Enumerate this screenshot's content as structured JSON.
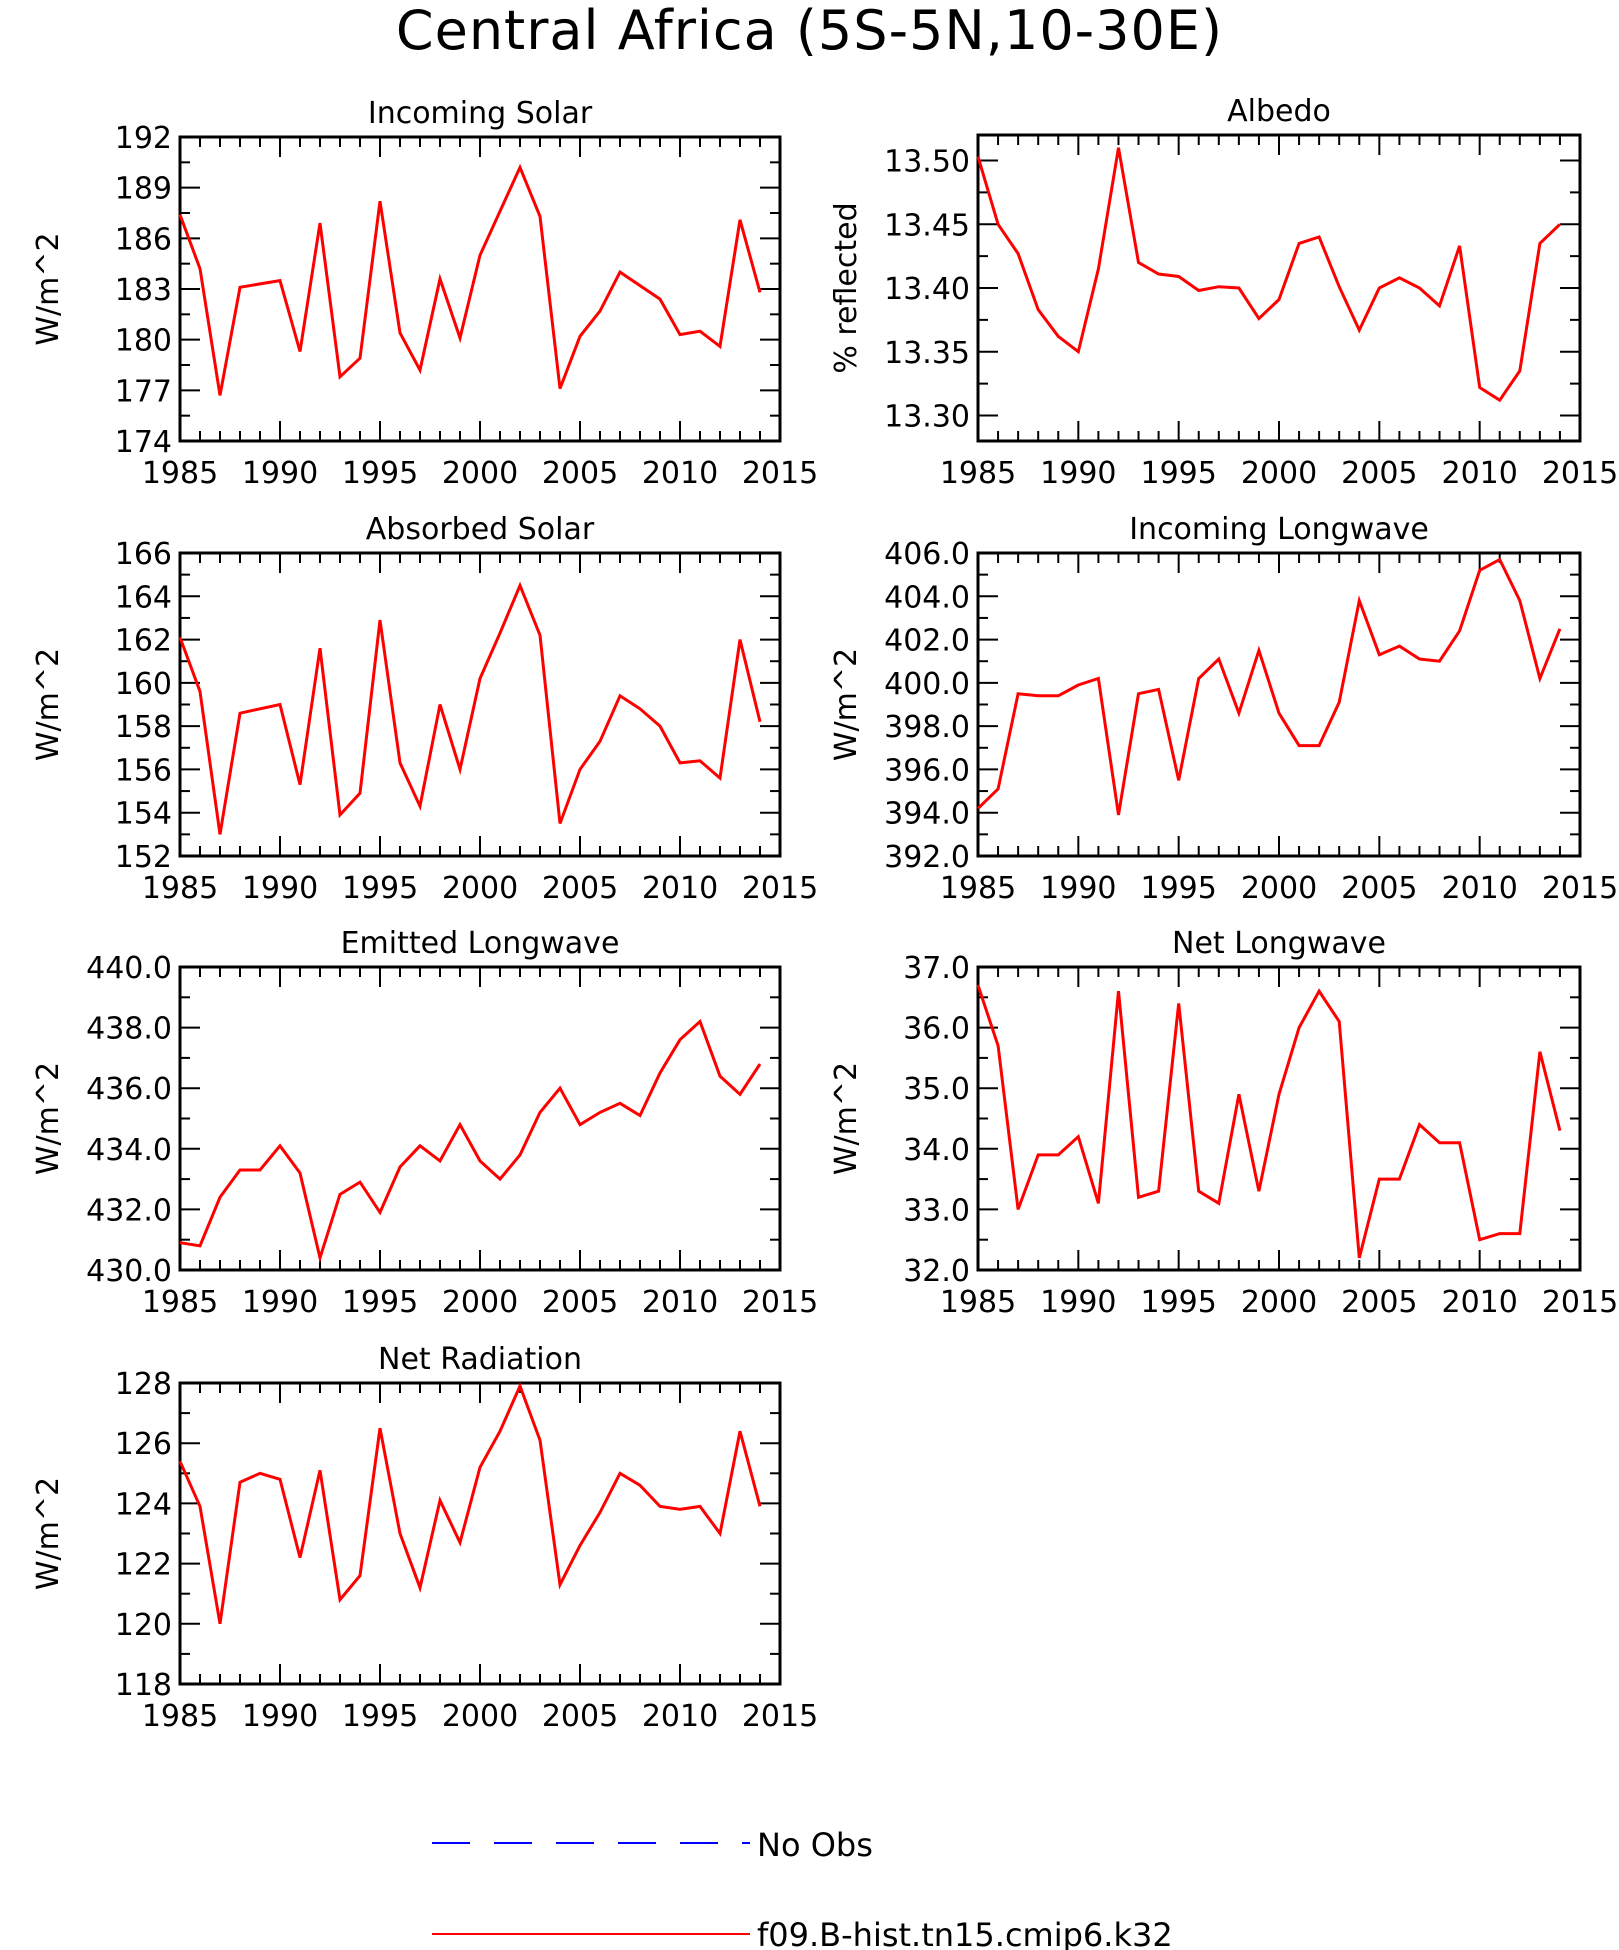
{
  "title": "Central Africa (5S-5N,10-30E)",
  "colors": {
    "model": "#ff0000",
    "obs": "#0000ff",
    "axis": "#000000"
  },
  "legend": [
    {
      "label": "No Obs",
      "style": "dashed",
      "color": "#0000ff"
    },
    {
      "label": "f09.B-hist.tn15.cmip6.k32",
      "style": "solid",
      "color": "#ff0000"
    }
  ],
  "chart_data": [
    {
      "type": "line",
      "title": "Incoming Solar",
      "xlabel": "",
      "ylabel": "W/m^2",
      "xlim": [
        1985,
        2015
      ],
      "ylim": [
        174,
        192
      ],
      "xticks": [
        "1985",
        "1990",
        "1995",
        "2000",
        "2005",
        "2010",
        "2015"
      ],
      "yticks": [
        "174",
        "177",
        "180",
        "183",
        "186",
        "189",
        "192"
      ],
      "x": [
        1985,
        1986,
        1987,
        1988,
        1989,
        1990,
        1991,
        1992,
        1993,
        1994,
        1995,
        1996,
        1997,
        1998,
        1999,
        2000,
        2001,
        2002,
        2003,
        2004,
        2005,
        2006,
        2007,
        2008,
        2009,
        2010,
        2011,
        2012,
        2013,
        2014
      ],
      "series": [
        {
          "name": "f09.B-hist.tn15.cmip6.k32",
          "values": [
            187.4,
            184.2,
            176.7,
            183.1,
            183.3,
            183.5,
            179.3,
            186.9,
            177.8,
            178.9,
            188.2,
            180.4,
            178.2,
            183.6,
            180.1,
            185.0,
            187.6,
            190.2,
            187.3,
            177.1,
            180.2,
            181.7,
            184.0,
            183.2,
            182.4,
            180.3,
            180.5,
            179.6,
            187.1,
            182.8
          ]
        }
      ]
    },
    {
      "type": "line",
      "title": "Albedo",
      "xlabel": "",
      "ylabel": "% reflected",
      "xlim": [
        1985,
        2015
      ],
      "ylim": [
        13.28,
        13.52
      ],
      "xticks": [
        "1985",
        "1990",
        "1995",
        "2000",
        "2005",
        "2010",
        "2015"
      ],
      "yticks": [
        "13.30",
        "13.35",
        "13.40",
        "13.45",
        "13.50"
      ],
      "x": [
        1985,
        1986,
        1987,
        1988,
        1989,
        1990,
        1991,
        1992,
        1993,
        1994,
        1995,
        1996,
        1997,
        1998,
        1999,
        2000,
        2001,
        2002,
        2003,
        2004,
        2005,
        2006,
        2007,
        2008,
        2009,
        2010,
        2011,
        2012,
        2013,
        2014
      ],
      "series": [
        {
          "name": "f09.B-hist.tn15.cmip6.k32",
          "values": [
            13.503,
            13.45,
            13.427,
            13.383,
            13.362,
            13.35,
            13.415,
            13.51,
            13.42,
            13.411,
            13.409,
            13.398,
            13.401,
            13.4,
            13.376,
            13.391,
            13.435,
            13.44,
            13.401,
            13.367,
            13.4,
            13.408,
            13.4,
            13.386,
            13.433,
            13.322,
            13.312,
            13.335,
            13.435,
            13.45
          ]
        }
      ]
    },
    {
      "type": "line",
      "title": "Absorbed Solar",
      "xlabel": "",
      "ylabel": "W/m^2",
      "xlim": [
        1985,
        2015
      ],
      "ylim": [
        152,
        166
      ],
      "xticks": [
        "1985",
        "1990",
        "1995",
        "2000",
        "2005",
        "2010",
        "2015"
      ],
      "yticks": [
        "152",
        "154",
        "156",
        "158",
        "160",
        "162",
        "164",
        "166"
      ],
      "x": [
        1985,
        1986,
        1987,
        1988,
        1989,
        1990,
        1991,
        1992,
        1993,
        1994,
        1995,
        1996,
        1997,
        1998,
        1999,
        2000,
        2001,
        2002,
        2003,
        2004,
        2005,
        2006,
        2007,
        2008,
        2009,
        2010,
        2011,
        2012,
        2013,
        2014
      ],
      "series": [
        {
          "name": "f09.B-hist.tn15.cmip6.k32",
          "values": [
            162.1,
            159.6,
            153.0,
            158.6,
            158.8,
            159.0,
            155.3,
            161.6,
            153.9,
            154.9,
            162.9,
            156.3,
            154.3,
            159.0,
            156.0,
            160.2,
            162.3,
            164.5,
            162.2,
            153.5,
            156.0,
            157.3,
            159.4,
            158.8,
            158.0,
            156.3,
            156.4,
            155.6,
            162.0,
            158.2
          ]
        }
      ]
    },
    {
      "type": "line",
      "title": "Incoming Longwave",
      "xlabel": "",
      "ylabel": "W/m^2",
      "xlim": [
        1985,
        2015
      ],
      "ylim": [
        392,
        406
      ],
      "xticks": [
        "1985",
        "1990",
        "1995",
        "2000",
        "2005",
        "2010",
        "2015"
      ],
      "yticks": [
        "392.0",
        "394.0",
        "396.0",
        "398.0",
        "400.0",
        "402.0",
        "404.0",
        "406.0"
      ],
      "x": [
        1985,
        1986,
        1987,
        1988,
        1989,
        1990,
        1991,
        1992,
        1993,
        1994,
        1995,
        1996,
        1997,
        1998,
        1999,
        2000,
        2001,
        2002,
        2003,
        2004,
        2005,
        2006,
        2007,
        2008,
        2009,
        2010,
        2011,
        2012,
        2013,
        2014
      ],
      "series": [
        {
          "name": "f09.B-hist.tn15.cmip6.k32",
          "values": [
            394.2,
            395.1,
            399.5,
            399.4,
            399.4,
            399.9,
            400.2,
            393.9,
            399.5,
            399.7,
            395.5,
            400.2,
            401.1,
            398.6,
            401.5,
            398.6,
            397.1,
            397.1,
            399.1,
            403.8,
            401.3,
            401.7,
            401.1,
            401.0,
            402.4,
            405.2,
            405.7,
            403.8,
            400.2,
            402.5
          ]
        }
      ]
    },
    {
      "type": "line",
      "title": "Emitted Longwave",
      "xlabel": "",
      "ylabel": "W/m^2",
      "xlim": [
        1985,
        2015
      ],
      "ylim": [
        430,
        440
      ],
      "xticks": [
        "1985",
        "1990",
        "1995",
        "2000",
        "2005",
        "2010",
        "2015"
      ],
      "yticks": [
        "430.0",
        "432.0",
        "434.0",
        "436.0",
        "438.0",
        "440.0"
      ],
      "x": [
        1985,
        1986,
        1987,
        1988,
        1989,
        1990,
        1991,
        1992,
        1993,
        1994,
        1995,
        1996,
        1997,
        1998,
        1999,
        2000,
        2001,
        2002,
        2003,
        2004,
        2005,
        2006,
        2007,
        2008,
        2009,
        2010,
        2011,
        2012,
        2013,
        2014
      ],
      "series": [
        {
          "name": "f09.B-hist.tn15.cmip6.k32",
          "values": [
            430.9,
            430.8,
            432.4,
            433.3,
            433.3,
            434.1,
            433.2,
            430.4,
            432.5,
            432.9,
            431.9,
            433.4,
            434.1,
            433.6,
            434.8,
            433.6,
            433.0,
            433.8,
            435.2,
            436.0,
            434.8,
            435.2,
            435.5,
            435.1,
            436.5,
            437.6,
            438.2,
            436.4,
            435.8,
            436.8
          ]
        }
      ]
    },
    {
      "type": "line",
      "title": "Net Longwave",
      "xlabel": "",
      "ylabel": "W/m^2",
      "xlim": [
        1985,
        2015
      ],
      "ylim": [
        32,
        37
      ],
      "xticks": [
        "1985",
        "1990",
        "1995",
        "2000",
        "2005",
        "2010",
        "2015"
      ],
      "yticks": [
        "32.0",
        "33.0",
        "34.0",
        "35.0",
        "36.0",
        "37.0"
      ],
      "x": [
        1985,
        1986,
        1987,
        1988,
        1989,
        1990,
        1991,
        1992,
        1993,
        1994,
        1995,
        1996,
        1997,
        1998,
        1999,
        2000,
        2001,
        2002,
        2003,
        2004,
        2005,
        2006,
        2007,
        2008,
        2009,
        2010,
        2011,
        2012,
        2013,
        2014
      ],
      "series": [
        {
          "name": "f09.B-hist.tn15.cmip6.k32",
          "values": [
            36.7,
            35.7,
            33.0,
            33.9,
            33.9,
            34.2,
            33.1,
            36.6,
            33.2,
            33.3,
            36.4,
            33.3,
            33.1,
            34.9,
            33.3,
            34.9,
            36.0,
            36.6,
            36.1,
            32.2,
            33.5,
            33.5,
            34.4,
            34.1,
            34.1,
            32.5,
            32.6,
            32.6,
            35.6,
            34.3
          ]
        }
      ]
    },
    {
      "type": "line",
      "title": "Net Radiation",
      "xlabel": "",
      "ylabel": "W/m^2",
      "xlim": [
        1985,
        2015
      ],
      "ylim": [
        118,
        128
      ],
      "xticks": [
        "1985",
        "1990",
        "1995",
        "2000",
        "2005",
        "2010",
        "2015"
      ],
      "yticks": [
        "118",
        "120",
        "122",
        "124",
        "126",
        "128"
      ],
      "x": [
        1985,
        1986,
        1987,
        1988,
        1989,
        1990,
        1991,
        1992,
        1993,
        1994,
        1995,
        1996,
        1997,
        1998,
        1999,
        2000,
        2001,
        2002,
        2003,
        2004,
        2005,
        2006,
        2007,
        2008,
        2009,
        2010,
        2011,
        2012,
        2013,
        2014
      ],
      "series": [
        {
          "name": "f09.B-hist.tn15.cmip6.k32",
          "values": [
            125.4,
            123.9,
            120.0,
            124.7,
            125.0,
            124.8,
            122.2,
            125.1,
            120.8,
            121.6,
            126.5,
            123.0,
            121.2,
            124.1,
            122.7,
            125.2,
            126.4,
            127.9,
            126.1,
            121.3,
            122.6,
            123.7,
            125.0,
            124.6,
            123.9,
            123.8,
            123.9,
            123.0,
            126.4,
            123.9
          ]
        }
      ]
    }
  ]
}
